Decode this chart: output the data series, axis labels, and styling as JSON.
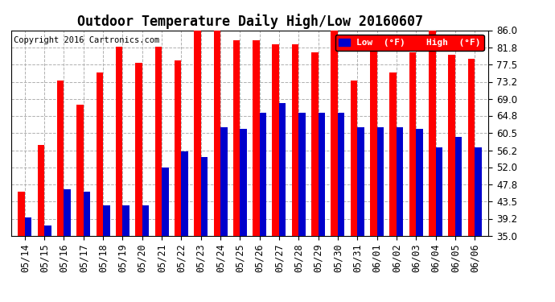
{
  "title": "Outdoor Temperature Daily High/Low 20160607",
  "copyright": "Copyright 2016 Cartronics.com",
  "legend_low": "Low  (°F)",
  "legend_high": "High  (°F)",
  "dates": [
    "05/14",
    "05/15",
    "05/16",
    "05/17",
    "05/18",
    "05/19",
    "05/20",
    "05/21",
    "05/22",
    "05/23",
    "05/24",
    "05/25",
    "05/26",
    "05/27",
    "05/28",
    "05/29",
    "05/30",
    "05/31",
    "06/01",
    "06/02",
    "06/03",
    "06/04",
    "06/05",
    "06/06"
  ],
  "highs": [
    46.0,
    57.5,
    73.5,
    67.5,
    75.5,
    82.0,
    78.0,
    82.0,
    78.5,
    86.0,
    86.0,
    83.5,
    83.5,
    82.5,
    82.5,
    80.5,
    86.0,
    73.5,
    81.8,
    75.5,
    80.5,
    86.0,
    80.0,
    79.0
  ],
  "lows": [
    39.5,
    37.5,
    46.5,
    46.0,
    42.5,
    42.5,
    42.5,
    52.0,
    56.0,
    54.5,
    62.0,
    61.5,
    65.5,
    68.0,
    65.5,
    65.5,
    65.5,
    62.0,
    62.0,
    62.0,
    61.5,
    57.0,
    59.5,
    57.0
  ],
  "ylim": [
    35.0,
    86.0
  ],
  "yticks": [
    35.0,
    39.2,
    43.5,
    47.8,
    52.0,
    56.2,
    60.5,
    64.8,
    69.0,
    73.2,
    77.5,
    81.8,
    86.0
  ],
  "bar_color_high": "#ff0000",
  "bar_color_low": "#0000cc",
  "background_color": "#ffffff",
  "grid_color": "#b0b0b0",
  "title_fontsize": 12,
  "tick_fontsize": 8.5,
  "copyright_fontsize": 7.5,
  "legend_fontsize": 8,
  "bar_width": 0.35
}
